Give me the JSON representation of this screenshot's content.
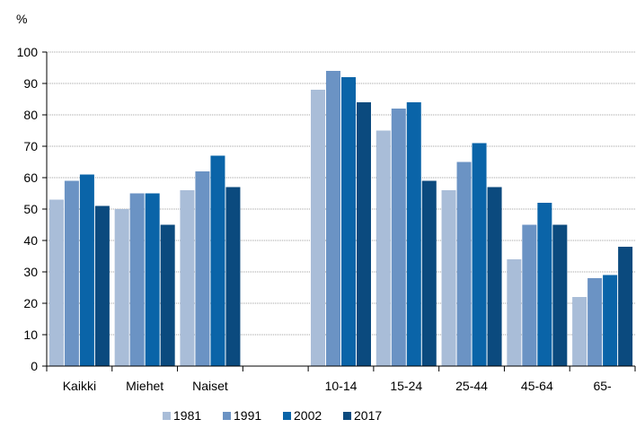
{
  "chart_data": {
    "type": "bar",
    "ylabel": "%",
    "ylim": [
      0,
      100
    ],
    "yticks": [
      0,
      10,
      20,
      30,
      40,
      50,
      60,
      70,
      80,
      90,
      100
    ],
    "grid": "horizontal",
    "legend_position": "bottom",
    "categories": [
      "Kaikki",
      "Miehet",
      "Naiset",
      "",
      "10-14",
      "15-24",
      "25-44",
      "45-64",
      "65-"
    ],
    "series": [
      {
        "name": "1981",
        "color": "#a9bdd8",
        "values": [
          53,
          50,
          56,
          null,
          88,
          75,
          56,
          34,
          22
        ]
      },
      {
        "name": "1991",
        "color": "#6b93c4",
        "values": [
          59,
          55,
          62,
          null,
          94,
          82,
          65,
          45,
          28
        ]
      },
      {
        "name": "2002",
        "color": "#0a64a8",
        "values": [
          61,
          55,
          67,
          null,
          92,
          84,
          71,
          52,
          29
        ]
      },
      {
        "name": "2017",
        "color": "#0b4a7e",
        "values": [
          51,
          45,
          57,
          null,
          84,
          59,
          57,
          45,
          38
        ]
      }
    ]
  }
}
